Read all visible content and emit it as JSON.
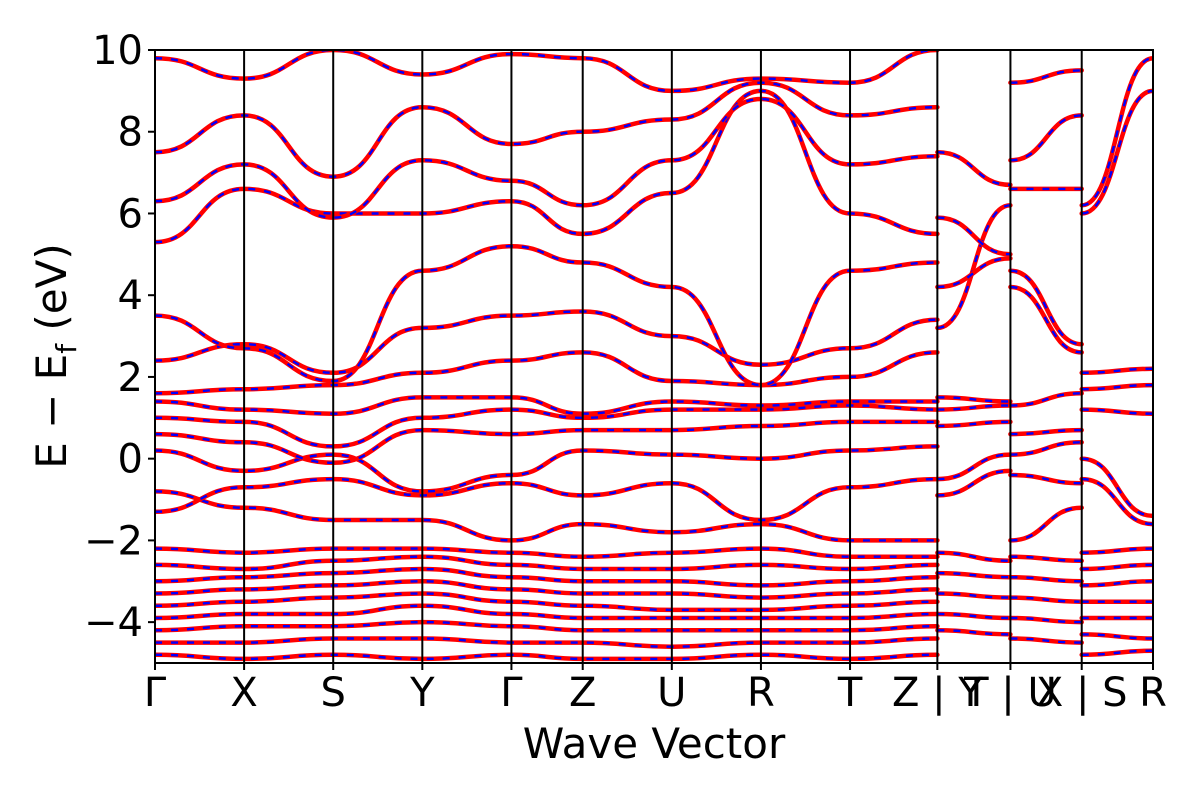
{
  "chart_data": {
    "type": "line",
    "title": "",
    "xlabel": "Wave Vector",
    "ylabel_main": "E − E",
    "ylabel_sub": "f",
    "ylabel_unit": " (eV)",
    "ylim": [
      -5,
      10
    ],
    "yticks": [
      -4,
      -2,
      0,
      2,
      4,
      6,
      8,
      10
    ],
    "ytick_labels": [
      "−4",
      "−2",
      "0",
      "2",
      "4",
      "6",
      "8",
      "10"
    ],
    "kpath_positions": [
      0,
      1,
      2,
      3,
      4,
      4.8,
      5.8,
      6.8,
      7.8,
      8.78,
      9.6,
      10.4,
      11.2
    ],
    "kpath_labels": [
      "Γ",
      "X",
      "S",
      "Y",
      "Γ",
      "Z",
      "U",
      "R",
      "T",
      "Z | Y",
      "T | U",
      "X | S",
      "R"
    ],
    "grid": false,
    "series": [
      {
        "color": "#ff0000",
        "style": "solid"
      },
      {
        "color": "#0000ff",
        "style": "dashed"
      }
    ],
    "bands": [
      {
        "x": [
          0,
          1,
          2,
          3,
          4,
          4.8,
          5.8,
          6.8,
          7.8,
          8.78
        ],
        "y": [
          -0.8,
          -1.2,
          -1.5,
          -1.5,
          -2.0,
          -1.6,
          -1.8,
          -1.6,
          -2.0,
          -2.0
        ]
      },
      {
        "x": [
          0,
          1,
          2,
          3,
          4,
          4.8,
          5.8,
          6.8,
          7.8,
          8.78
        ],
        "y": [
          -1.3,
          -0.7,
          -0.5,
          -0.9,
          -0.6,
          -0.9,
          -0.6,
          -1.5,
          -0.7,
          -0.5
        ]
      },
      {
        "x": [
          0,
          1,
          2,
          3,
          4,
          4.8,
          5.8,
          6.8,
          7.8,
          8.78
        ],
        "y": [
          0.2,
          -0.3,
          0.1,
          -0.8,
          -0.4,
          0.2,
          0.1,
          0.0,
          0.2,
          0.3
        ]
      },
      {
        "x": [
          0,
          1,
          2,
          3,
          4,
          4.8,
          5.8,
          6.8,
          7.8,
          8.78
        ],
        "y": [
          0.6,
          0.4,
          -0.1,
          0.7,
          0.6,
          0.7,
          0.7,
          0.8,
          0.9,
          0.9
        ]
      },
      {
        "x": [
          0,
          1,
          2,
          3,
          4,
          4.8,
          5.8,
          6.8,
          7.8,
          8.78
        ],
        "y": [
          1.0,
          0.9,
          0.3,
          1.0,
          1.2,
          1.0,
          1.2,
          1.2,
          1.3,
          1.2
        ]
      },
      {
        "x": [
          0,
          1,
          2,
          3,
          4,
          4.8,
          5.8,
          6.8,
          7.8,
          8.78
        ],
        "y": [
          1.4,
          1.2,
          1.1,
          1.5,
          1.5,
          1.1,
          1.4,
          1.3,
          1.4,
          1.4
        ]
      },
      {
        "x": [
          0,
          1,
          2,
          3,
          4,
          4.8,
          5.8,
          6.8,
          7.8,
          8.78
        ],
        "y": [
          1.6,
          1.7,
          1.8,
          2.1,
          2.4,
          2.6,
          1.9,
          1.8,
          2.0,
          2.6
        ]
      },
      {
        "x": [
          0,
          1,
          2,
          3,
          4,
          4.8,
          5.8,
          6.8,
          7.8,
          8.78
        ],
        "y": [
          2.4,
          2.8,
          2.1,
          3.2,
          3.5,
          3.6,
          3.0,
          2.3,
          2.7,
          3.4
        ]
      },
      {
        "x": [
          0,
          1,
          2,
          3,
          4,
          4.8,
          5.8,
          6.8,
          7.8,
          8.78
        ],
        "y": [
          3.5,
          2.7,
          1.9,
          4.6,
          5.2,
          4.8,
          4.2,
          1.8,
          4.6,
          4.8
        ]
      },
      {
        "x": [
          0,
          1,
          2,
          3,
          4,
          4.8,
          5.8,
          6.8,
          7.8,
          8.78
        ],
        "y": [
          5.3,
          6.6,
          6.0,
          6.0,
          6.3,
          5.5,
          6.5,
          9.0,
          6.0,
          5.5
        ]
      },
      {
        "x": [
          0,
          1,
          2,
          3,
          4,
          4.8,
          5.8,
          6.8,
          7.8,
          8.78
        ],
        "y": [
          6.3,
          7.2,
          5.9,
          7.3,
          6.8,
          6.2,
          7.3,
          8.8,
          7.2,
          7.4
        ]
      },
      {
        "x": [
          0,
          1,
          2,
          3,
          4,
          4.8,
          5.8,
          6.8,
          7.8,
          8.78
        ],
        "y": [
          7.5,
          8.4,
          6.9,
          8.6,
          7.7,
          8.0,
          8.3,
          9.2,
          8.4,
          8.6
        ]
      },
      {
        "x": [
          0,
          1,
          2,
          3,
          4,
          4.8,
          5.8,
          6.8,
          7.8,
          8.78
        ],
        "y": [
          9.8,
          9.3,
          10.0,
          9.4,
          9.9,
          9.8,
          9.0,
          9.3,
          9.2,
          10.0
        ]
      },
      {
        "x": [
          0,
          1,
          2,
          3,
          4,
          4.8,
          5.8,
          6.8,
          7.8,
          8.78
        ],
        "y": [
          -2.2,
          -2.3,
          -2.2,
          -2.2,
          -2.3,
          -2.4,
          -2.3,
          -2.2,
          -2.4,
          -2.4
        ]
      },
      {
        "x": [
          0,
          1,
          2,
          3,
          4,
          4.8,
          5.8,
          6.8,
          7.8,
          8.78
        ],
        "y": [
          -2.6,
          -2.7,
          -2.5,
          -2.4,
          -2.6,
          -2.7,
          -2.7,
          -2.6,
          -2.7,
          -2.6
        ]
      },
      {
        "x": [
          0,
          1,
          2,
          3,
          4,
          4.8,
          5.8,
          6.8,
          7.8,
          8.78
        ],
        "y": [
          -3.0,
          -2.9,
          -2.8,
          -2.7,
          -2.9,
          -3.0,
          -3.0,
          -3.1,
          -3.0,
          -2.9
        ]
      },
      {
        "x": [
          0,
          1,
          2,
          3,
          4,
          4.8,
          5.8,
          6.8,
          7.8,
          8.78
        ],
        "y": [
          -3.3,
          -3.2,
          -3.1,
          -3.0,
          -3.2,
          -3.3,
          -3.3,
          -3.4,
          -3.3,
          -3.2
        ]
      },
      {
        "x": [
          0,
          1,
          2,
          3,
          4,
          4.8,
          5.8,
          6.8,
          7.8,
          8.78
        ],
        "y": [
          -3.6,
          -3.5,
          -3.4,
          -3.3,
          -3.5,
          -3.6,
          -3.7,
          -3.7,
          -3.6,
          -3.5
        ]
      },
      {
        "x": [
          0,
          1,
          2,
          3,
          4,
          4.8,
          5.8,
          6.8,
          7.8,
          8.78
        ],
        "y": [
          -3.9,
          -3.8,
          -3.8,
          -3.6,
          -3.8,
          -3.9,
          -3.9,
          -3.9,
          -3.9,
          -3.8
        ]
      },
      {
        "x": [
          0,
          1,
          2,
          3,
          4,
          4.8,
          5.8,
          6.8,
          7.8,
          8.78
        ],
        "y": [
          -4.2,
          -4.1,
          -4.1,
          -4.0,
          -4.1,
          -4.2,
          -4.2,
          -4.2,
          -4.2,
          -4.1
        ]
      },
      {
        "x": [
          0,
          1,
          2,
          3,
          4,
          4.8,
          5.8,
          6.8,
          7.8,
          8.78
        ],
        "y": [
          -4.5,
          -4.5,
          -4.4,
          -4.4,
          -4.5,
          -4.5,
          -4.6,
          -4.5,
          -4.5,
          -4.4
        ]
      },
      {
        "x": [
          0,
          1,
          2,
          3,
          4,
          4.8,
          5.8,
          6.8,
          7.8,
          8.78
        ],
        "y": [
          -4.8,
          -4.9,
          -4.8,
          -4.9,
          -4.8,
          -4.9,
          -4.9,
          -4.8,
          -4.9,
          -4.8
        ]
      },
      {
        "x": [
          8.78,
          9.6
        ],
        "y": [
          -0.9,
          -0.3
        ]
      },
      {
        "x": [
          8.78,
          9.6
        ],
        "y": [
          -0.5,
          0.1
        ]
      },
      {
        "x": [
          8.78,
          9.6
        ],
        "y": [
          0.8,
          0.9
        ]
      },
      {
        "x": [
          8.78,
          9.6
        ],
        "y": [
          1.2,
          1.3
        ]
      },
      {
        "x": [
          8.78,
          9.6
        ],
        "y": [
          1.5,
          1.4
        ]
      },
      {
        "x": [
          8.78,
          9.6
        ],
        "y": [
          3.2,
          6.2
        ]
      },
      {
        "x": [
          8.78,
          9.6
        ],
        "y": [
          4.2,
          4.9
        ]
      },
      {
        "x": [
          8.78,
          9.6
        ],
        "y": [
          5.9,
          5.0
        ]
      },
      {
        "x": [
          8.78,
          9.6
        ],
        "y": [
          7.5,
          6.7
        ]
      },
      {
        "x": [
          8.78,
          9.6
        ],
        "y": [
          -2.3,
          -2.5
        ]
      },
      {
        "x": [
          8.78,
          9.6
        ],
        "y": [
          -2.8,
          -2.9
        ]
      },
      {
        "x": [
          8.78,
          9.6
        ],
        "y": [
          -3.3,
          -3.4
        ]
      },
      {
        "x": [
          8.78,
          9.6
        ],
        "y": [
          -3.8,
          -3.9
        ]
      },
      {
        "x": [
          8.78,
          9.6
        ],
        "y": [
          -4.2,
          -4.3
        ]
      },
      {
        "x": [
          9.6,
          10.4
        ],
        "y": [
          -2.0,
          -1.2
        ]
      },
      {
        "x": [
          9.6,
          10.4
        ],
        "y": [
          -0.4,
          -0.6
        ]
      },
      {
        "x": [
          9.6,
          10.4
        ],
        "y": [
          0.1,
          0.4
        ]
      },
      {
        "x": [
          9.6,
          10.4
        ],
        "y": [
          0.6,
          0.7
        ]
      },
      {
        "x": [
          9.6,
          10.4
        ],
        "y": [
          1.3,
          1.6
        ]
      },
      {
        "x": [
          9.6,
          10.4
        ],
        "y": [
          4.2,
          2.6
        ]
      },
      {
        "x": [
          9.6,
          10.4
        ],
        "y": [
          4.6,
          2.8
        ]
      },
      {
        "x": [
          9.6,
          10.4
        ],
        "y": [
          6.6,
          6.6
        ]
      },
      {
        "x": [
          9.6,
          10.4
        ],
        "y": [
          7.3,
          8.4
        ]
      },
      {
        "x": [
          9.6,
          10.4
        ],
        "y": [
          9.2,
          9.5
        ]
      },
      {
        "x": [
          9.6,
          10.4
        ],
        "y": [
          -2.4,
          -2.5
        ]
      },
      {
        "x": [
          9.6,
          10.4
        ],
        "y": [
          -2.9,
          -3.0
        ]
      },
      {
        "x": [
          9.6,
          10.4
        ],
        "y": [
          -3.4,
          -3.5
        ]
      },
      {
        "x": [
          9.6,
          10.4
        ],
        "y": [
          -3.9,
          -4.0
        ]
      },
      {
        "x": [
          9.6,
          10.4
        ],
        "y": [
          -4.4,
          -4.5
        ]
      },
      {
        "x": [
          10.4,
          11.2
        ],
        "y": [
          2.1,
          2.2
        ]
      },
      {
        "x": [
          10.4,
          11.2
        ],
        "y": [
          1.7,
          1.8
        ]
      },
      {
        "x": [
          10.4,
          11.2
        ],
        "y": [
          1.2,
          1.1
        ]
      },
      {
        "x": [
          10.4,
          11.2
        ],
        "y": [
          0.0,
          -1.4
        ]
      },
      {
        "x": [
          10.4,
          11.2
        ],
        "y": [
          -0.5,
          -1.6
        ]
      },
      {
        "x": [
          10.4,
          11.2
        ],
        "y": [
          6.0,
          9.0
        ]
      },
      {
        "x": [
          10.4,
          11.2
        ],
        "y": [
          6.2,
          9.8
        ]
      },
      {
        "x": [
          10.4,
          11.2
        ],
        "y": [
          -2.3,
          -2.2
        ]
      },
      {
        "x": [
          10.4,
          11.2
        ],
        "y": [
          -2.7,
          -2.6
        ]
      },
      {
        "x": [
          10.4,
          11.2
        ],
        "y": [
          -3.1,
          -3.0
        ]
      },
      {
        "x": [
          10.4,
          11.2
        ],
        "y": [
          -3.5,
          -3.5
        ]
      },
      {
        "x": [
          10.4,
          11.2
        ],
        "y": [
          -3.9,
          -3.9
        ]
      },
      {
        "x": [
          10.4,
          11.2
        ],
        "y": [
          -4.3,
          -4.4
        ]
      },
      {
        "x": [
          10.4,
          11.2
        ],
        "y": [
          -4.8,
          -4.7
        ]
      }
    ]
  }
}
